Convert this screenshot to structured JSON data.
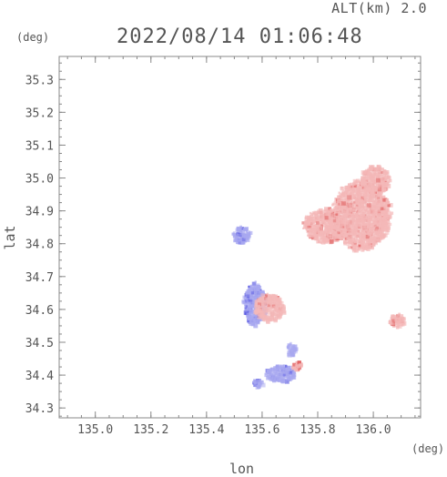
{
  "header": {
    "altitude": "ALT(km) 2.0",
    "datetime": "2022/08/14 01:06:48"
  },
  "chart_data": {
    "type": "heatmap",
    "xlabel": "lon",
    "ylabel": "lat",
    "x_unit": "(deg)",
    "y_unit": "(deg)",
    "xlim": [
      134.87,
      136.17
    ],
    "ylim": [
      34.27,
      35.37
    ],
    "x_ticks": [
      "135.0",
      "135.2",
      "135.4",
      "135.6",
      "135.8",
      "136.0"
    ],
    "x_tick_values": [
      135.0,
      135.2,
      135.4,
      135.6,
      135.8,
      136.0
    ],
    "y_ticks": [
      "34.3",
      "34.4",
      "34.5",
      "34.6",
      "34.7",
      "34.8",
      "34.9",
      "35.0",
      "35.1",
      "35.2",
      "35.3"
    ],
    "y_tick_values": [
      34.3,
      34.4,
      34.5,
      34.6,
      34.7,
      34.8,
      34.9,
      35.0,
      35.1,
      35.2,
      35.3
    ],
    "grid": false,
    "colors": {
      "positive": "#f4b8b8",
      "positive_strong": "#e06060",
      "negative": "#a8a8f0",
      "negative_strong": "#5050e0",
      "axis": "#888888"
    },
    "regions": [
      {
        "lon": 135.95,
        "lat": 34.89,
        "rx": 0.1,
        "ry": 0.1,
        "sign": "positive",
        "intensity": 0.45
      },
      {
        "lon": 135.82,
        "lat": 34.86,
        "rx": 0.07,
        "ry": 0.05,
        "sign": "positive",
        "intensity": 0.5
      },
      {
        "lon": 136.0,
        "lat": 35.0,
        "rx": 0.05,
        "ry": 0.04,
        "sign": "positive",
        "intensity": 0.35
      },
      {
        "lon": 136.08,
        "lat": 34.57,
        "rx": 0.025,
        "ry": 0.02,
        "sign": "positive",
        "intensity": 0.5
      },
      {
        "lon": 135.57,
        "lat": 34.62,
        "rx": 0.04,
        "ry": 0.06,
        "sign": "negative",
        "intensity": 0.55
      },
      {
        "lon": 135.62,
        "lat": 34.61,
        "rx": 0.05,
        "ry": 0.04,
        "sign": "positive",
        "intensity": 0.35
      },
      {
        "lon": 135.52,
        "lat": 34.83,
        "rx": 0.03,
        "ry": 0.025,
        "sign": "negative",
        "intensity": 0.6
      },
      {
        "lon": 135.66,
        "lat": 34.41,
        "rx": 0.05,
        "ry": 0.025,
        "sign": "negative",
        "intensity": 0.35
      },
      {
        "lon": 135.72,
        "lat": 34.43,
        "rx": 0.015,
        "ry": 0.015,
        "sign": "positive",
        "intensity": 0.9
      },
      {
        "lon": 135.58,
        "lat": 34.38,
        "rx": 0.02,
        "ry": 0.01,
        "sign": "negative",
        "intensity": 0.55
      },
      {
        "lon": 135.7,
        "lat": 34.48,
        "rx": 0.015,
        "ry": 0.02,
        "sign": "negative",
        "intensity": 0.45
      }
    ]
  }
}
